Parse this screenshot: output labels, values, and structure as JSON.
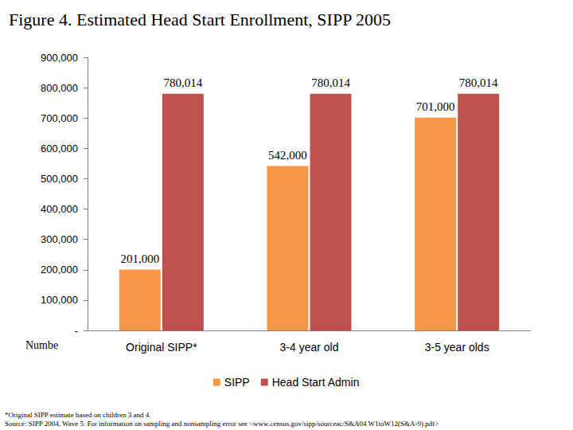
{
  "chart_data": {
    "type": "bar",
    "title": "Figure 4. Estimated Head Start Enrollment, SIPP 2005",
    "ylabel": "Numbe",
    "categories": [
      "Original SIPP*",
      "3-4 year old",
      "3-5 year olds"
    ],
    "series": [
      {
        "name": "SIPP",
        "color": "#f79646",
        "values": [
          201000,
          542000,
          701000
        ],
        "value_labels": [
          "201,000",
          "542,000",
          "701,000"
        ]
      },
      {
        "name": "Head Start Admin",
        "color": "#c0504d",
        "values": [
          780014,
          780014,
          780014
        ],
        "value_labels": [
          "780,014",
          "780,014",
          "780,014"
        ]
      }
    ],
    "ylim": [
      0,
      900000
    ],
    "yticks": [
      {
        "value": 0,
        "label": "-"
      },
      {
        "value": 100000,
        "label": "100,000"
      },
      {
        "value": 200000,
        "label": "200,000"
      },
      {
        "value": 300000,
        "label": "300,000"
      },
      {
        "value": 400000,
        "label": "400,000"
      },
      {
        "value": 500000,
        "label": "500,000"
      },
      {
        "value": 600000,
        "label": "600,000"
      },
      {
        "value": 700000,
        "label": "700,000"
      },
      {
        "value": 800000,
        "label": "800,000"
      },
      {
        "value": 900000,
        "label": "900,000"
      }
    ],
    "grid": false,
    "legend": "bottom",
    "data_labels": true,
    "annotations": [
      "*Original SIPP estimate based on children 3 and 4.",
      "Source: SIPP 2004, Wave 5. For information on sampling and nonsampling error see <www.census.gov/sipp/sourceac/S&A04 W1toW12(S&A-9).pdf>"
    ]
  }
}
